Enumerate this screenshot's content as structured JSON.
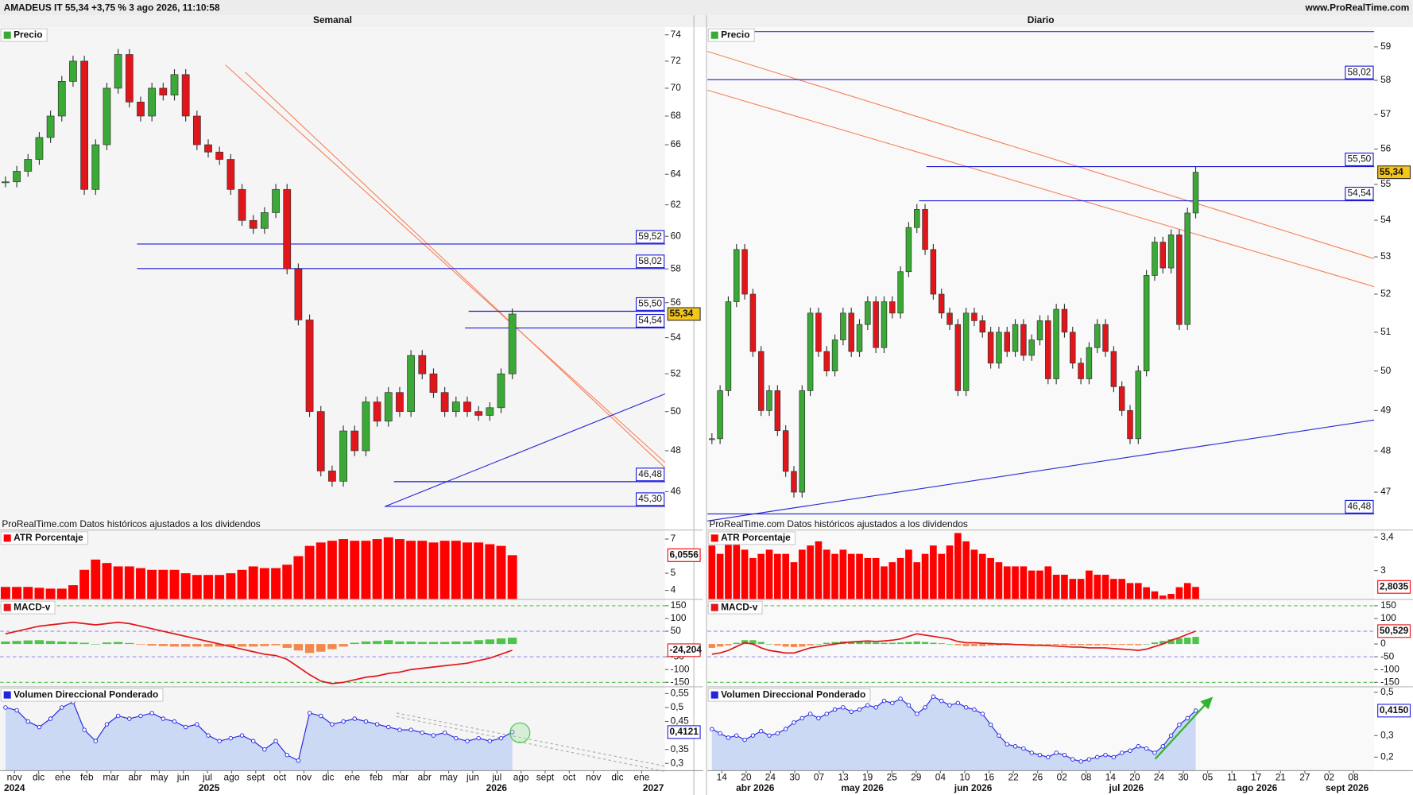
{
  "header": {
    "title": "AMADEUS IT 55,34 +3,75 % 3 ago 2026, 11:10:58",
    "site": "www.ProRealTime.com"
  },
  "source_note": "ProRealTime.com  Datos históricos ajustados a los dividendos",
  "chart_data": [
    {
      "type": "candlestick",
      "title": "Semanal",
      "up_color": "#3aa935",
      "down_color": "#e0161b",
      "x_labels": [
        "nov",
        "dic",
        "ene",
        "feb",
        "mar",
        "abr",
        "may",
        "jun",
        "jul",
        "ago",
        "sept",
        "oct",
        "nov",
        "dic",
        "ene",
        "feb",
        "mar",
        "abr",
        "may",
        "jun",
        "jul",
        "ago",
        "sept",
        "oct",
        "nov",
        "dic",
        "ene"
      ],
      "x_sublabels": [
        "2024",
        "2025",
        "2026",
        "2027"
      ],
      "price": {
        "name": "Precio",
        "log": true,
        "ylim": [
          44.2,
          74.6
        ],
        "yticks": [
          46,
          48,
          50,
          52,
          54,
          56,
          58,
          60,
          62,
          64,
          66,
          68,
          70,
          72,
          74
        ],
        "level_color": "#1a1ad6",
        "levels": [
          {
            "value": 59.52,
            "label": "59,52"
          },
          {
            "value": 58.02,
            "label": "58,02"
          },
          {
            "value": 55.5,
            "label": "55,50"
          },
          {
            "value": 54.54,
            "label": "54,54"
          },
          {
            "value": 46.48,
            "label": "46,48"
          },
          {
            "value": 45.3,
            "label": "45,30"
          }
        ],
        "last": {
          "value": 55.34,
          "label": "55,34"
        },
        "closes": [
          63.5,
          64.2,
          65,
          66.5,
          68,
          70.5,
          72,
          63,
          66,
          70,
          72.5,
          69,
          68,
          70,
          69.5,
          71,
          68,
          66,
          65.5,
          65,
          63,
          61,
          60.5,
          61.5,
          63,
          58,
          55,
          50,
          47,
          46.5,
          49,
          48,
          50.5,
          49.5,
          51,
          50,
          53,
          52,
          51,
          50,
          50.5,
          50,
          49.8,
          50.2,
          52,
          55.34
        ]
      },
      "atr": {
        "name": "ATR Porcentaje",
        "color": "#ff0000",
        "ylim": [
          3.47,
          7.53
        ],
        "yticks": [
          4,
          5,
          7
        ],
        "last": {
          "value": 6.0556,
          "label": "6,0556"
        },
        "values": [
          4.2,
          4.2,
          4.2,
          4.15,
          4.1,
          4.1,
          4.3,
          5.2,
          5.8,
          5.6,
          5.4,
          5.4,
          5.3,
          5.2,
          5.2,
          5.2,
          5.0,
          4.9,
          4.9,
          4.9,
          5.0,
          5.2,
          5.4,
          5.3,
          5.3,
          5.5,
          6.0,
          6.6,
          6.8,
          6.9,
          7.0,
          6.9,
          6.9,
          7.0,
          7.1,
          7.0,
          6.9,
          6.9,
          6.8,
          6.9,
          6.9,
          6.8,
          6.8,
          6.7,
          6.6,
          6.0556
        ]
      },
      "macd": {
        "name": "MACD-v",
        "line_color": "#e0161b",
        "pos_color": "#4fc44a",
        "neg_color": "#f5874a",
        "ylim": [
          -167.6,
          174.7
        ],
        "yticks": [
          -150,
          -100,
          -50,
          50,
          100,
          150
        ],
        "bands": [
          -50,
          50
        ],
        "extremes": [
          -150,
          150
        ],
        "last": {
          "value": -24.204,
          "label": "-24,204"
        },
        "line": [
          40,
          50,
          60,
          70,
          75,
          80,
          85,
          80,
          75,
          80,
          85,
          80,
          70,
          60,
          50,
          40,
          30,
          20,
          10,
          0,
          -10,
          -20,
          -30,
          -40,
          -45,
          -60,
          -90,
          -120,
          -145,
          -155,
          -150,
          -140,
          -130,
          -125,
          -115,
          -110,
          -100,
          -95,
          -90,
          -85,
          -80,
          -75,
          -65,
          -55,
          -40,
          -24.204
        ],
        "histogram": [
          10,
          12,
          14,
          15,
          12,
          10,
          8,
          5,
          0,
          6,
          8,
          4,
          -2,
          -6,
          -8,
          -10,
          -10,
          -10,
          -10,
          -10,
          -10,
          -10,
          -10,
          -8,
          -5,
          -15,
          -25,
          -35,
          -30,
          -20,
          -10,
          5,
          10,
          12,
          15,
          10,
          10,
          8,
          8,
          8,
          10,
          10,
          15,
          18,
          22,
          25
        ]
      },
      "volume": {
        "name": "Volumen Direccional Ponderado",
        "color": "#2323e0",
        "fill": "#cbd9f4",
        "ylim": [
          0.274,
          0.574
        ],
        "yticks": [
          {
            "value": 0.3,
            "label": "0,3"
          },
          {
            "value": 0.35,
            "label": "0,35"
          },
          {
            "value": 0.45,
            "label": "0,45"
          },
          {
            "value": 0.5,
            "label": "0,5"
          },
          {
            "value": 0.55,
            "label": "0,55"
          }
        ],
        "last": {
          "value": 0.4121,
          "label": "0,4121"
        },
        "values": [
          0.5,
          0.49,
          0.45,
          0.43,
          0.46,
          0.5,
          0.52,
          0.42,
          0.38,
          0.44,
          0.47,
          0.46,
          0.47,
          0.48,
          0.46,
          0.45,
          0.43,
          0.44,
          0.4,
          0.38,
          0.39,
          0.4,
          0.38,
          0.35,
          0.38,
          0.33,
          0.31,
          0.48,
          0.47,
          0.44,
          0.45,
          0.46,
          0.45,
          0.44,
          0.43,
          0.42,
          0.42,
          0.41,
          0.4,
          0.41,
          0.39,
          0.38,
          0.39,
          0.38,
          0.39,
          0.4121
        ]
      }
    },
    {
      "type": "candlestick",
      "title": "Diario",
      "up_color": "#3aa935",
      "down_color": "#e0161b",
      "x_labels": [
        "14",
        "20",
        "24",
        "30",
        "07",
        "13",
        "19",
        "25",
        "29",
        "04",
        "10",
        "16",
        "22",
        "26",
        "02",
        "08",
        "14",
        "20",
        "24",
        "30",
        "05",
        "11",
        "17",
        "21",
        "27",
        "02",
        "08"
      ],
      "x_sublabels": [
        "abr 2026",
        "may 2026",
        "jun 2026",
        "jul 2026",
        "ago 2026",
        "sept 2026"
      ],
      "price": {
        "name": "Precio",
        "log": true,
        "ylim": [
          46.1,
          59.6
        ],
        "yticks": [
          47,
          48,
          49,
          50,
          51,
          52,
          53,
          54,
          55,
          56,
          57,
          58,
          59
        ],
        "level_color": "#1a1ad6",
        "levels": [
          {
            "value": 58.02,
            "label": "58,02"
          },
          {
            "value": 55.5,
            "label": "55,50"
          },
          {
            "value": 54.54,
            "label": "54,54"
          },
          {
            "value": 46.48,
            "label": "46,48"
          }
        ],
        "last": {
          "value": 55.34,
          "label": "55,34"
        },
        "closes": [
          48.3,
          49.5,
          51.8,
          53.2,
          52.0,
          50.5,
          49.0,
          49.5,
          48.5,
          47.5,
          47.0,
          49.5,
          51.5,
          50.5,
          50.0,
          50.8,
          51.5,
          50.5,
          51.2,
          51.8,
          50.6,
          51.8,
          51.5,
          52.6,
          53.8,
          54.3,
          53.2,
          52.0,
          51.5,
          51.2,
          49.5,
          51.5,
          51.3,
          51.0,
          50.2,
          51.0,
          50.5,
          51.2,
          50.4,
          50.8,
          51.3,
          49.8,
          51.6,
          51.0,
          50.2,
          49.8,
          50.6,
          51.2,
          50.5,
          49.6,
          49.0,
          48.3,
          50.0,
          52.5,
          53.4,
          52.7,
          53.6,
          51.2,
          54.2,
          55.34
        ]
      },
      "atr": {
        "name": "ATR Porcentaje",
        "color": "#ff0000",
        "ylim": [
          2.654,
          3.486
        ],
        "yticks": [
          3,
          {
            "value": 3.4,
            "label": "3,4"
          }
        ],
        "last": {
          "value": 2.8035,
          "label": "2,8035"
        },
        "values": [
          3.3,
          3.2,
          3.45,
          3.35,
          3.25,
          3.15,
          3.2,
          3.25,
          3.2,
          3.2,
          3.1,
          3.25,
          3.3,
          3.35,
          3.25,
          3.2,
          3.25,
          3.2,
          3.2,
          3.15,
          3.15,
          3.05,
          3.1,
          3.15,
          3.25,
          3.1,
          3.2,
          3.3,
          3.2,
          3.3,
          3.45,
          3.35,
          3.25,
          3.2,
          3.15,
          3.1,
          3.05,
          3.05,
          3.05,
          3.0,
          3.0,
          3.05,
          2.95,
          2.95,
          2.9,
          2.9,
          3.0,
          2.95,
          2.95,
          2.9,
          2.9,
          2.85,
          2.85,
          2.8,
          2.75,
          2.7,
          2.72,
          2.8,
          2.85,
          2.8035
        ]
      },
      "macd": {
        "name": "MACD-v",
        "line_color": "#e0161b",
        "pos_color": "#4fc44a",
        "neg_color": "#f5874a",
        "ylim": [
          -167.6,
          174.7
        ],
        "yticks": [
          -150,
          -100,
          -50,
          0,
          100,
          150
        ],
        "bands": [
          -50,
          50
        ],
        "extremes": [
          -150,
          150
        ],
        "last": {
          "value": 50.529,
          "label": "50,529"
        },
        "line": [
          -40,
          -35,
          -25,
          -10,
          5,
          0,
          -15,
          -25,
          -30,
          -35,
          -35,
          -25,
          -15,
          -10,
          -5,
          0,
          5,
          8,
          10,
          12,
          10,
          12,
          15,
          20,
          30,
          40,
          35,
          30,
          25,
          20,
          10,
          5,
          5,
          3,
          2,
          0,
          0,
          -2,
          -3,
          -5,
          -5,
          -6,
          -8,
          -10,
          -12,
          -12,
          -15,
          -15,
          -15,
          -18,
          -20,
          -22,
          -25,
          -20,
          -10,
          0,
          15,
          25,
          38,
          50.529
        ],
        "histogram": [
          -15,
          -10,
          -5,
          5,
          15,
          15,
          8,
          0,
          -5,
          -10,
          -12,
          -10,
          -5,
          0,
          5,
          8,
          10,
          10,
          10,
          8,
          6,
          5,
          5,
          6,
          8,
          10,
          8,
          5,
          3,
          0,
          -5,
          -8,
          -8,
          -8,
          -6,
          -5,
          -4,
          -4,
          -3,
          -3,
          -2,
          -2,
          -3,
          -4,
          -4,
          -4,
          -5,
          -5,
          -4,
          -3,
          -3,
          -4,
          -4,
          0,
          6,
          12,
          18,
          22,
          25,
          28
        ]
      },
      "volume": {
        "name": "Volumen Direccional Ponderado",
        "color": "#2323e0",
        "fill": "#cbd9f4",
        "ylim": [
          0.1375,
          0.525
        ],
        "yticks": [
          {
            "value": 0.2,
            "label": "0,2"
          },
          {
            "value": 0.3,
            "label": "0,3"
          },
          {
            "value": 0.5,
            "label": "0,5"
          }
        ],
        "last": {
          "value": 0.415,
          "label": "0,4150"
        },
        "values": [
          0.33,
          0.31,
          0.29,
          0.3,
          0.28,
          0.3,
          0.32,
          0.3,
          0.31,
          0.33,
          0.36,
          0.38,
          0.4,
          0.38,
          0.4,
          0.42,
          0.43,
          0.41,
          0.42,
          0.44,
          0.43,
          0.46,
          0.45,
          0.47,
          0.44,
          0.4,
          0.43,
          0.48,
          0.46,
          0.44,
          0.45,
          0.43,
          0.42,
          0.4,
          0.35,
          0.3,
          0.26,
          0.25,
          0.24,
          0.22,
          0.21,
          0.2,
          0.22,
          0.21,
          0.19,
          0.18,
          0.19,
          0.2,
          0.21,
          0.2,
          0.22,
          0.23,
          0.25,
          0.24,
          0.22,
          0.25,
          0.3,
          0.35,
          0.38,
          0.415
        ]
      }
    }
  ]
}
